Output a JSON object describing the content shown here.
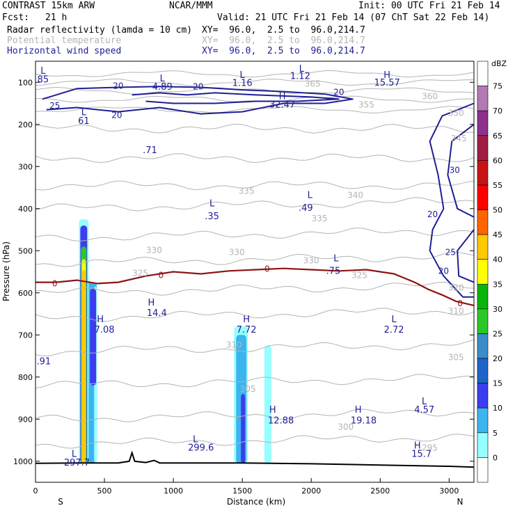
{
  "header": {
    "model": "CONTRAST 15km ARW",
    "org": "NCAR/MMM",
    "init": "Init: 00 UTC Fri 21 Feb 14",
    "fcst_label": "Fcst:",
    "fcst_value": "21 h",
    "valid": "Valid: 21 UTC Fri 21 Feb 14 (07 ChT Sat 22 Feb 14)",
    "fields": [
      {
        "name": "Radar reflectivity (lamda = 10 cm)",
        "xy": "XY=  96.0,  2.5 to  96.0,214.7",
        "color": "#000000"
      },
      {
        "name": "Potential temperature",
        "xy": "XY=  96.0,  2.5 to  96.0,214.7",
        "color": "#b4b4b4"
      },
      {
        "name": "Horizontal wind speed",
        "xy": "XY=  96.0,  2.5 to  96.0,214.7",
        "color": "#1e1e96"
      }
    ]
  },
  "chart_data": {
    "type": "cross-section",
    "ylabel": "Pressure (hPa)",
    "xlabel": "Distance (km)",
    "x_range": [
      0,
      3180
    ],
    "y_range": [
      1050,
      50
    ],
    "x_ticks": [
      0,
      500,
      1000,
      1500,
      2000,
      2500,
      3000
    ],
    "y_ticks": [
      100,
      200,
      300,
      400,
      500,
      600,
      700,
      800,
      900,
      1000
    ],
    "x_ends": {
      "left": "S",
      "right": "N"
    },
    "colorbar": {
      "unit": "dBZ",
      "levels": [
        0,
        5,
        10,
        15,
        20,
        25,
        30,
        35,
        40,
        45,
        50,
        55,
        60,
        65,
        70,
        75
      ],
      "colors": [
        "#ffffff",
        "#96ffff",
        "#3cb4f0",
        "#3c3cf0",
        "#1e64c8",
        "#3c8cc8",
        "#28c828",
        "#0ab40a",
        "#ffff00",
        "#ffc800",
        "#ff6400",
        "#ff0000",
        "#c81414",
        "#a01e46",
        "#8c328c",
        "#b478b4",
        "#ffffff"
      ]
    },
    "theta_labels": [
      {
        "t": "365",
        "x": 2010,
        "p": 110
      },
      {
        "t": "360",
        "x": 2860,
        "p": 140
      },
      {
        "t": "355",
        "x": 2400,
        "p": 160
      },
      {
        "t": "350",
        "x": 3050,
        "p": 180
      },
      {
        "t": "345",
        "x": 3070,
        "p": 240
      },
      {
        "t": "340",
        "x": 2320,
        "p": 375
      },
      {
        "t": "335",
        "x": 1530,
        "p": 365
      },
      {
        "t": "335",
        "x": 2060,
        "p": 430
      },
      {
        "t": "330",
        "x": 860,
        "p": 505
      },
      {
        "t": "330",
        "x": 1460,
        "p": 510
      },
      {
        "t": "330",
        "x": 2000,
        "p": 530
      },
      {
        "t": "325",
        "x": 760,
        "p": 560
      },
      {
        "t": "325",
        "x": 2350,
        "p": 565
      },
      {
        "t": "320",
        "x": 3050,
        "p": 595
      },
      {
        "t": "310",
        "x": 1440,
        "p": 730
      },
      {
        "t": "310",
        "x": 3050,
        "p": 650
      },
      {
        "t": "305",
        "x": 1540,
        "p": 835
      },
      {
        "t": "305",
        "x": 3050,
        "p": 760
      },
      {
        "t": "300",
        "x": 2250,
        "p": 925
      },
      {
        "t": "295",
        "x": 2860,
        "p": 975
      }
    ],
    "wind_labels": [
      {
        "t": "20",
        "x": 600,
        "p": 115
      },
      {
        "t": "20",
        "x": 1180,
        "p": 117
      },
      {
        "t": "20",
        "x": 2200,
        "p": 130
      },
      {
        "t": "25",
        "x": 140,
        "p": 162
      },
      {
        "t": "20",
        "x": 590,
        "p": 185
      },
      {
        "t": "30",
        "x": 3040,
        "p": 315
      },
      {
        "t": "20",
        "x": 2880,
        "p": 420
      },
      {
        "t": "25",
        "x": 3010,
        "p": 510
      },
      {
        "t": "20",
        "x": 2960,
        "p": 555
      }
    ],
    "zero_labels": [
      {
        "t": "0",
        "x": 140,
        "p": 578
      },
      {
        "t": "0",
        "x": 910,
        "p": 558
      },
      {
        "t": "0",
        "x": 1680,
        "p": 543
      },
      {
        "t": "0",
        "x": 3080,
        "p": 625
      }
    ],
    "hl_labels": [
      {
        "t": "L",
        "x": 55,
        "p": 80
      },
      {
        "t": "85",
        "x": 55,
        "p": 100
      },
      {
        "t": "L",
        "x": 1930,
        "p": 75
      },
      {
        "t": "1.12",
        "x": 1920,
        "p": 92
      },
      {
        "t": "H",
        "x": 2550,
        "p": 90
      },
      {
        "t": "15.57",
        "x": 2550,
        "p": 108
      },
      {
        "t": "L",
        "x": 920,
        "p": 98
      },
      {
        "t": "4.89",
        "x": 920,
        "p": 118
      },
      {
        "t": "L",
        "x": 1500,
        "p": 90
      },
      {
        "t": "1.16",
        "x": 1500,
        "p": 109
      },
      {
        "t": "H",
        "x": 1790,
        "p": 140
      },
      {
        "t": "32.47",
        "x": 1790,
        "p": 160
      },
      {
        "t": "L",
        "x": 350,
        "p": 178
      },
      {
        "t": "61",
        "x": 350,
        "p": 199
      },
      {
        "t": ".71",
        "x": 830,
        "p": 268
      },
      {
        "t": "L",
        "x": 1990,
        "p": 375
      },
      {
        "t": ".49",
        "x": 1960,
        "p": 405
      },
      {
        "t": "L",
        "x": 1280,
        "p": 395
      },
      {
        "t": ".35",
        "x": 1280,
        "p": 425
      },
      {
        "t": "L",
        "x": 2180,
        "p": 525
      },
      {
        "t": ".75",
        "x": 2160,
        "p": 555
      },
      {
        "t": "H",
        "x": 840,
        "p": 630
      },
      {
        "t": "14.4",
        "x": 880,
        "p": 655
      },
      {
        "t": "H",
        "x": 470,
        "p": 670
      },
      {
        "t": "7.08",
        "x": 500,
        "p": 695
      },
      {
        "t": "H",
        "x": 1530,
        "p": 670
      },
      {
        "t": "7.72",
        "x": 1530,
        "p": 695
      },
      {
        "t": "L",
        "x": 2600,
        "p": 670
      },
      {
        "t": "2.72",
        "x": 2600,
        "p": 695
      },
      {
        "t": ".91",
        "x": 60,
        "p": 770
      },
      {
        "t": "L",
        "x": 2820,
        "p": 865
      },
      {
        "t": "4.57",
        "x": 2820,
        "p": 885
      },
      {
        "t": "H",
        "x": 1720,
        "p": 885
      },
      {
        "t": "12.88",
        "x": 1780,
        "p": 910
      },
      {
        "t": "H",
        "x": 2340,
        "p": 885
      },
      {
        "t": "19.18",
        "x": 2380,
        "p": 910
      },
      {
        "t": "L",
        "x": 1160,
        "p": 955
      },
      {
        "t": "299.6",
        "x": 1200,
        "p": 975
      },
      {
        "t": "H",
        "x": 2770,
        "p": 970
      },
      {
        "t": "15.7",
        "x": 2800,
        "p": 990
      },
      {
        "t": "L",
        "x": 280,
        "p": 990
      },
      {
        "t": "297.7",
        "x": 300,
        "p": 1010
      }
    ]
  }
}
